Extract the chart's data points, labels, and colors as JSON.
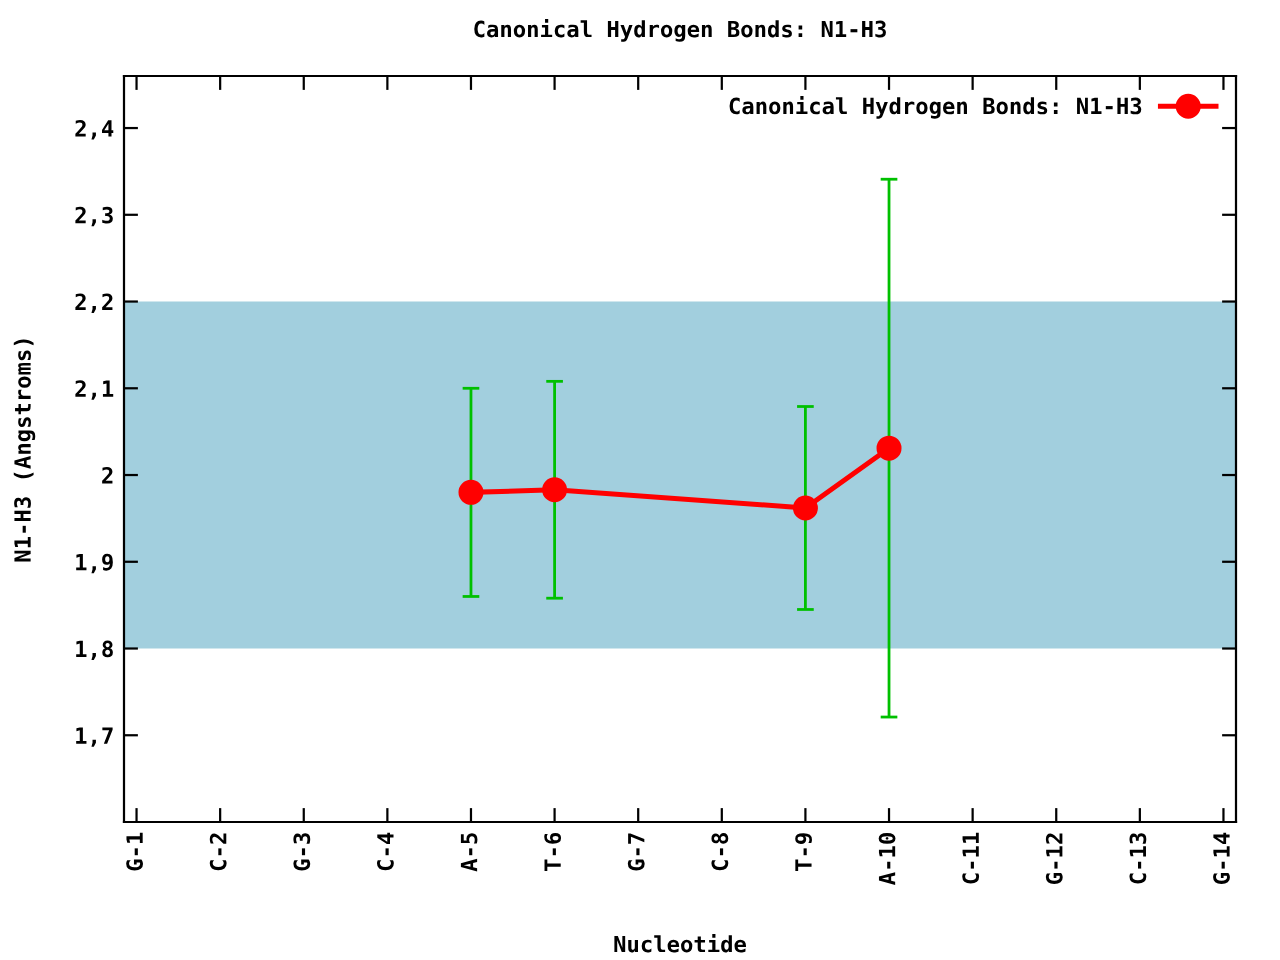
{
  "chart_data": {
    "type": "line",
    "title": "Canonical Hydrogen Bonds: N1-H3",
    "xlabel": "Nucleotide",
    "ylabel": "N1-H3 (Angstroms)",
    "categories": [
      "G-1",
      "C-2",
      "G-3",
      "C-4",
      "A-5",
      "T-6",
      "G-7",
      "C-8",
      "T-9",
      "A-10",
      "C-11",
      "G-12",
      "C-13",
      "G-14"
    ],
    "series": [
      {
        "name": "Canonical Hydrogen Bonds: N1-H3",
        "color": "#ff0000",
        "values": [
          null,
          null,
          null,
          null,
          1.98,
          1.983,
          null,
          null,
          1.962,
          2.031,
          null,
          null,
          null,
          null
        ],
        "errors": [
          null,
          null,
          null,
          null,
          0.12,
          0.125,
          null,
          null,
          0.117,
          0.31,
          null,
          null,
          null,
          null
        ]
      }
    ],
    "ylim": [
      1.6,
      2.46
    ],
    "yticks": [
      {
        "value": 1.7,
        "label": "1,7"
      },
      {
        "value": 1.8,
        "label": "1,8"
      },
      {
        "value": 1.9,
        "label": "1,9"
      },
      {
        "value": 2,
        "label": "2"
      },
      {
        "value": 2.1,
        "label": "2,1"
      },
      {
        "value": 2.2,
        "label": "2,2"
      },
      {
        "value": 2.3,
        "label": "2,3"
      },
      {
        "value": 2.4,
        "label": "2,4"
      }
    ],
    "bands": [
      {
        "axis": "y",
        "from": 1.8,
        "to": 2.2,
        "color": "#a2cfde"
      }
    ],
    "marker": "circle",
    "line_style": "solid",
    "legend": "top right",
    "grid": false
  }
}
